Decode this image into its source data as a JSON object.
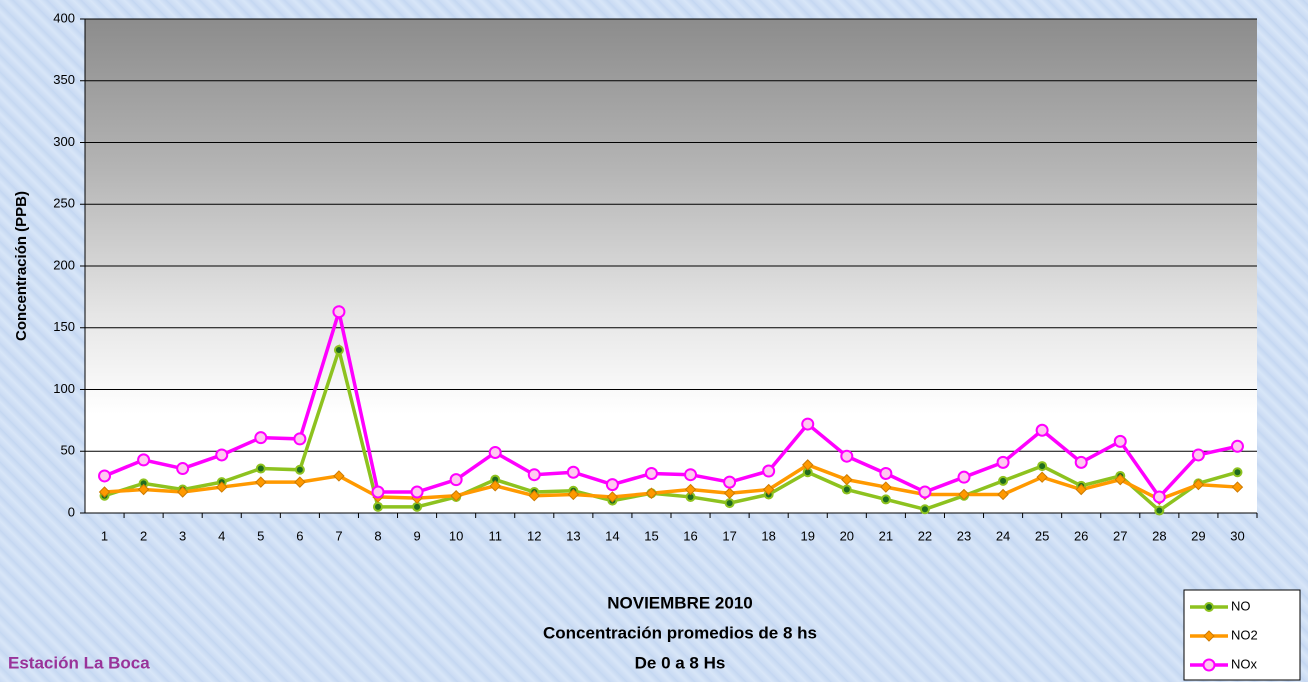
{
  "chart_data": {
    "type": "line",
    "title": "NOVIEMBRE 2010",
    "subtitle": "Concentración promedios de 8 hs",
    "subtitle2": "De 0 a 8 Hs",
    "annotation": "Estación La Boca",
    "y_label": "Concentración  (PPB)",
    "categories": [
      1,
      2,
      3,
      4,
      5,
      6,
      7,
      8,
      9,
      10,
      11,
      12,
      13,
      14,
      15,
      16,
      17,
      18,
      19,
      20,
      21,
      22,
      23,
      24,
      25,
      26,
      27,
      28,
      29,
      30
    ],
    "series": [
      {
        "name": "NO",
        "color": "#8dc21f",
        "values": [
          14,
          24,
          19,
          25,
          36,
          35,
          132,
          5,
          5,
          13,
          27,
          17,
          18,
          10,
          16,
          13,
          8,
          15,
          33,
          19,
          11,
          3,
          14,
          26,
          38,
          22,
          30,
          2,
          24,
          33
        ]
      },
      {
        "name": "NO2",
        "color": "#ff9900",
        "values": [
          17,
          19,
          17,
          21,
          25,
          25,
          30,
          13,
          12,
          14,
          22,
          14,
          15,
          13,
          16,
          19,
          16,
          19,
          39,
          27,
          21,
          15,
          15,
          15,
          29,
          19,
          27,
          11,
          23,
          21
        ]
      },
      {
        "name": "NOx",
        "color": "#ff00ff",
        "values": [
          30,
          43,
          36,
          47,
          61,
          60,
          163,
          17,
          17,
          27,
          49,
          31,
          33,
          23,
          32,
          31,
          25,
          34,
          72,
          46,
          32,
          17,
          29,
          41,
          67,
          41,
          58,
          13,
          47,
          54
        ]
      }
    ],
    "ylim": [
      0,
      400
    ],
    "yticks": [
      0,
      50,
      100,
      150,
      200,
      250,
      300,
      350,
      400
    ],
    "grid": true
  }
}
